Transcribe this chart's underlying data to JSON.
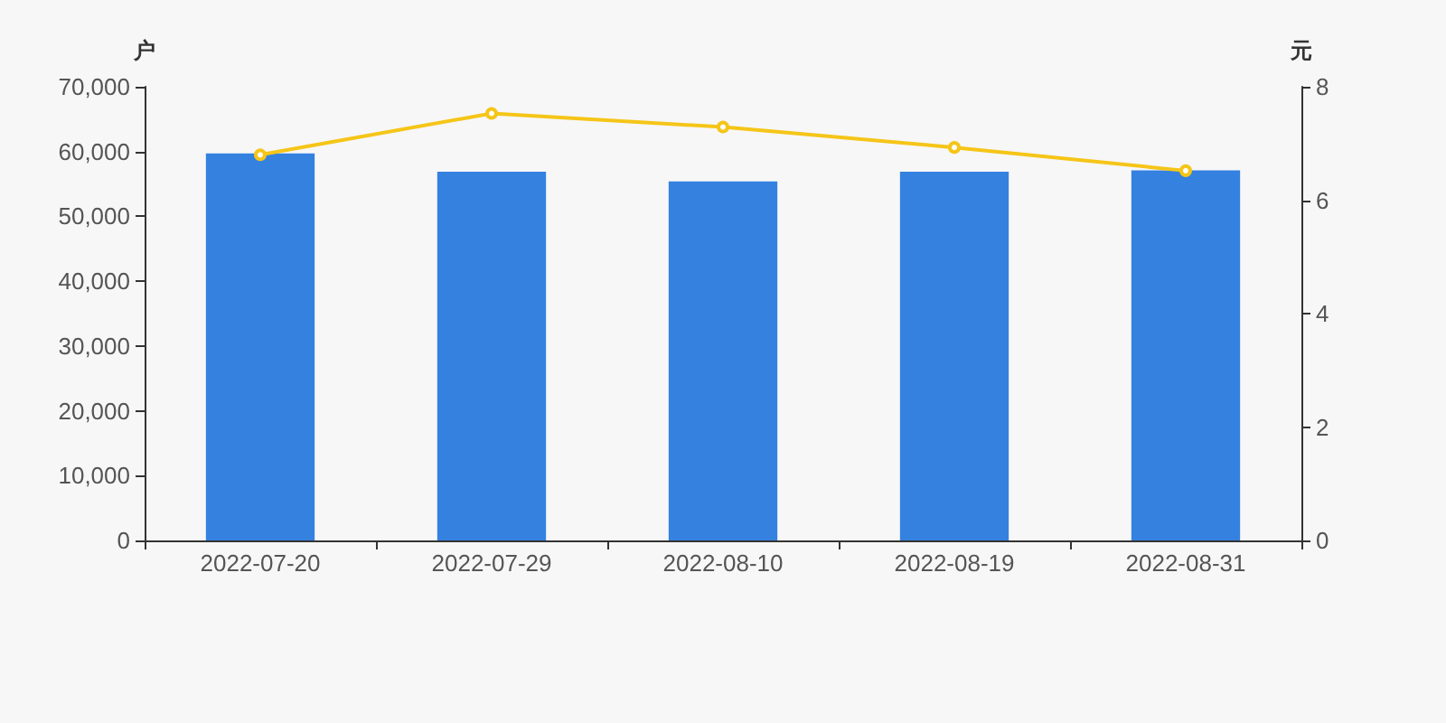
{
  "chart_data": {
    "type": "bar",
    "categories": [
      "2022-07-20",
      "2022-07-29",
      "2022-08-10",
      "2022-08-19",
      "2022-08-31"
    ],
    "series": [
      {
        "color": "#3481e0",
        "values": [
          59700,
          56900,
          55400,
          56900,
          57100
        ]
      },
      {
        "type": "line",
        "axis": "y2",
        "color": "#f5c518",
        "marker": "circle",
        "values": [
          6.8,
          7.53,
          7.29,
          6.93,
          6.52
        ]
      }
    ],
    "ylabel": "户",
    "y2label": "元",
    "ylim": [
      0,
      70000
    ],
    "yticks": [
      0,
      {
        "value": 10000,
        "label": "10,000"
      },
      {
        "value": 20000,
        "label": "20,000"
      },
      {
        "value": 30000,
        "label": "30,000"
      },
      {
        "value": 40000,
        "label": "40,000"
      },
      {
        "value": 50000,
        "label": "50,000"
      },
      {
        "value": 60000,
        "label": "60,000"
      },
      {
        "value": 70000,
        "label": "70,000"
      }
    ],
    "y2lim": [
      0,
      8
    ],
    "y2ticks": [
      0,
      2,
      4,
      6,
      8
    ],
    "grid": false
  }
}
